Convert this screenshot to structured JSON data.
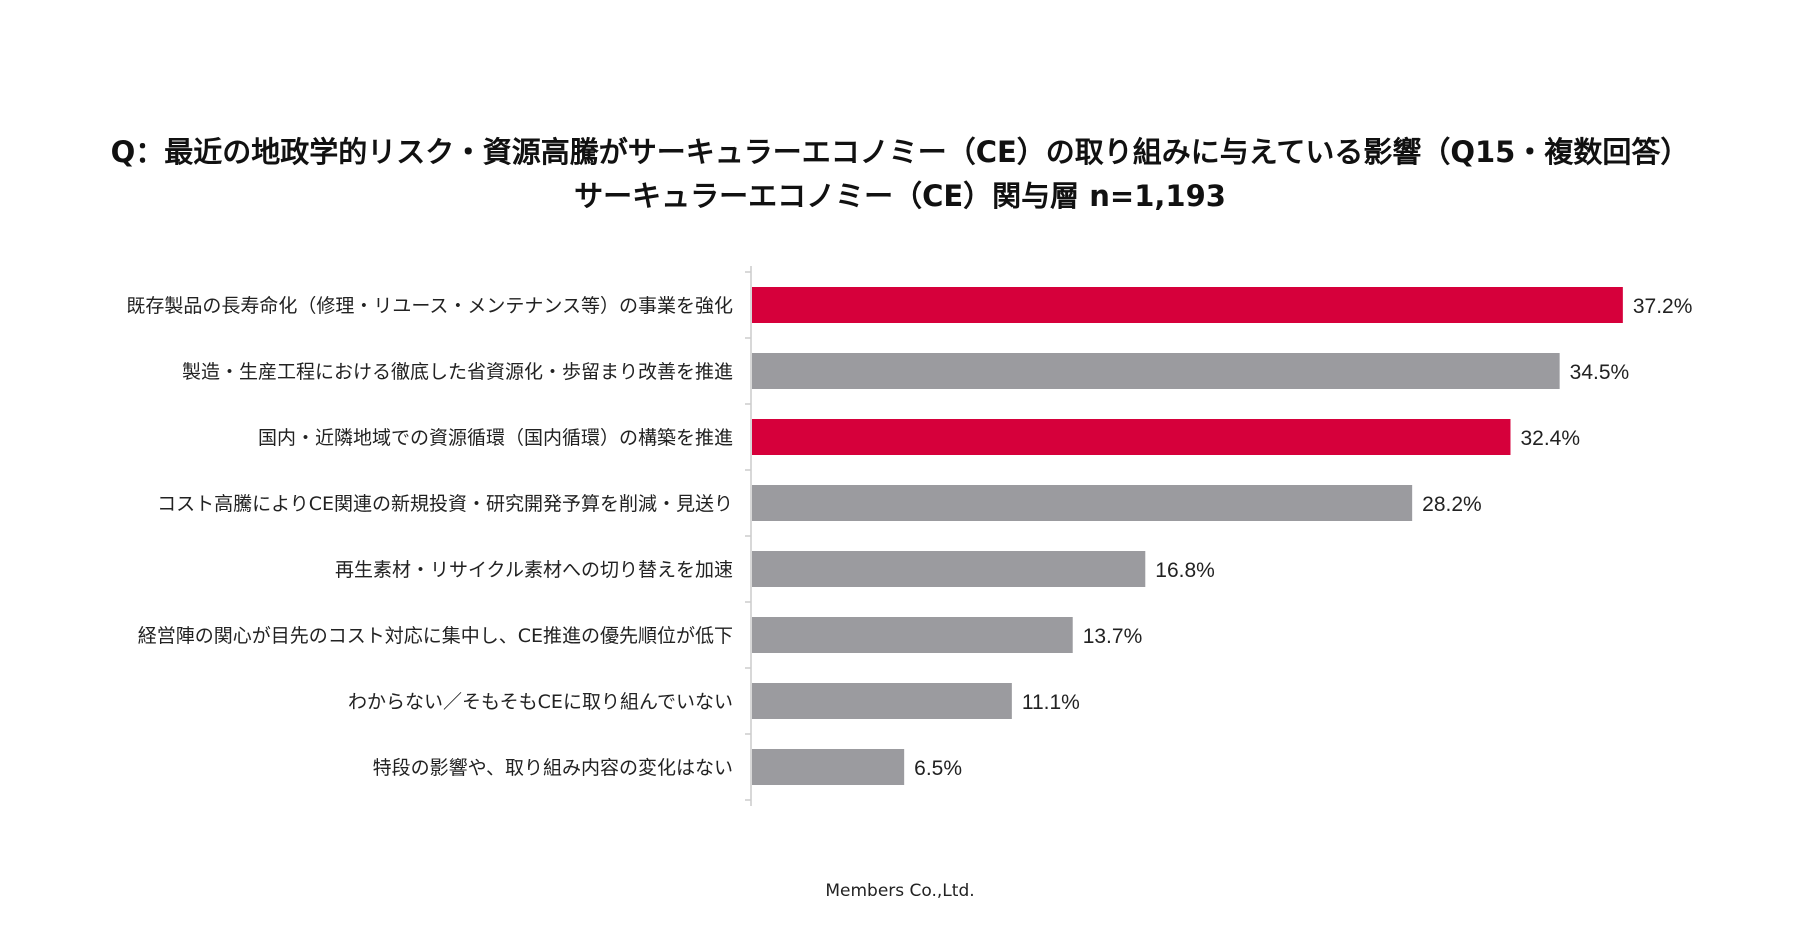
{
  "title": {
    "line1": "Q：最近の地政学的リスク・資源高騰がサーキュラーエコノミー（CE）の取り組みに与えている影響（Q15・複数回答）",
    "line2": "サーキュラーエコノミー（CE）関与層 n=1,193"
  },
  "footer": {
    "credit": "Members Co.,Ltd."
  },
  "colors": {
    "highlight": "#d6003b",
    "default": "#9b9b9f",
    "axis": "#cccccc"
  },
  "chart_data": {
    "type": "bar",
    "orientation": "horizontal",
    "value_suffix": "%",
    "categories": [
      "既存製品の長寿命化（修理・リユース・メンテナンス等）の事業を強化",
      "製造・生産工程における徹底した省資源化・歩留まり改善を推進",
      "国内・近隣地域での資源循環（国内循環）の構築を推進",
      "コスト高騰によりCE関連の新規投資・研究開発予算を削減・見送り",
      "再生素材・リサイクル素材への切り替えを加速",
      "経営陣の関心が目先のコスト対応に集中し、CE推進の優先順位が低下",
      "わからない／そもそもCEに取り組んでいない",
      "特段の影響や、取り組み内容の変化はない"
    ],
    "values": [
      37.2,
      34.5,
      32.4,
      28.2,
      16.8,
      13.7,
      11.1,
      6.5
    ],
    "value_labels": [
      "37.2%",
      "34.5%",
      "32.4%",
      "28.2%",
      "16.8%",
      "13.7%",
      "11.1%",
      "6.5%"
    ],
    "highlighted": [
      true,
      false,
      true,
      false,
      false,
      false,
      false,
      false
    ],
    "xlim": [
      0,
      40
    ],
    "grid": false,
    "legend": "none"
  }
}
